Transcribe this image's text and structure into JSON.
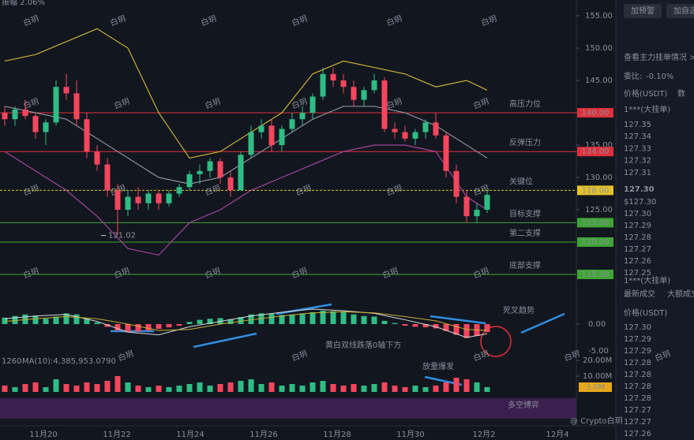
{
  "chart_data": {
    "type": "candlestick",
    "amplitude": "振幅 2.06%",
    "ylim": [
      155,
      115
    ],
    "yticks": [
      {
        "value": 155,
        "label": "155.00"
      },
      {
        "value": 150,
        "label": "150.00"
      },
      {
        "value": 145,
        "label": "145.00"
      },
      {
        "value": 140,
        "label": "140.00"
      },
      {
        "value": 135,
        "label": "135.00"
      },
      {
        "value": 130,
        "label": "130.00"
      },
      {
        "value": 125,
        "label": "125.00"
      }
    ],
    "dates": [
      "11月20",
      "11月22",
      "11月24",
      "11月26",
      "11月28",
      "11月30",
      "12月2",
      "12月4"
    ],
    "up_color": "#2ebd85",
    "down_color": "#f6465d",
    "candles": [
      [
        140,
        141,
        138,
        139
      ],
      [
        139,
        141,
        138,
        140.5
      ],
      [
        140.5,
        142,
        139,
        139.5
      ],
      [
        139.5,
        140,
        136,
        137
      ],
      [
        137,
        139,
        135,
        138.5
      ],
      [
        138.5,
        145,
        138,
        144
      ],
      [
        144,
        146,
        142,
        143
      ],
      [
        143,
        145,
        138,
        139
      ],
      [
        139,
        140,
        133,
        134
      ],
      [
        134,
        135,
        131,
        132
      ],
      [
        132,
        133,
        127,
        128
      ],
      [
        128,
        129,
        121.02,
        125
      ],
      [
        125,
        128,
        124,
        127
      ],
      [
        127,
        128.5,
        125,
        126
      ],
      [
        126,
        128,
        125,
        127.5
      ],
      [
        127.5,
        128,
        125,
        126
      ],
      [
        126,
        128,
        125.5,
        127.5
      ],
      [
        127.5,
        129,
        127,
        128.5
      ],
      [
        128.5,
        131,
        128,
        130.5
      ],
      [
        130.5,
        132,
        129,
        131
      ],
      [
        131,
        133,
        130,
        132.5
      ],
      [
        132.5,
        133,
        129,
        130
      ],
      [
        130,
        131,
        127,
        128
      ],
      [
        128,
        134,
        128,
        133.5
      ],
      [
        133.5,
        138,
        133,
        137
      ],
      [
        137,
        139,
        136,
        138
      ],
      [
        138,
        139,
        134,
        135
      ],
      [
        135,
        138,
        134,
        137.5
      ],
      [
        137.5,
        140,
        137,
        139
      ],
      [
        139,
        141,
        138,
        140
      ],
      [
        140,
        143,
        139,
        142.5
      ],
      [
        142.5,
        147,
        142,
        146
      ],
      [
        146,
        147,
        144,
        145
      ],
      [
        145,
        146,
        143,
        144
      ],
      [
        144,
        145,
        141,
        142
      ],
      [
        142,
        144,
        141,
        143.5
      ],
      [
        143.5,
        146,
        143,
        145
      ],
      [
        145,
        145.5,
        137,
        137.5
      ],
      [
        137.5,
        138.5,
        136,
        137
      ],
      [
        137,
        138,
        135.5,
        136
      ],
      [
        136,
        137.5,
        135,
        137
      ],
      [
        137,
        139,
        136,
        138.5
      ],
      [
        138.5,
        140,
        136,
        136.5
      ],
      [
        136.5,
        137,
        130,
        131
      ],
      [
        131,
        132,
        126,
        127
      ],
      [
        127,
        128,
        123,
        124
      ],
      [
        124,
        126,
        123,
        125
      ],
      [
        125,
        128,
        124.5,
        127.3
      ]
    ],
    "band_x": [
      0,
      3,
      6,
      9,
      12,
      15,
      18,
      21,
      24,
      27,
      30,
      33,
      36,
      39,
      42,
      45,
      47
    ],
    "bands": [
      {
        "color": "#c9b037",
        "values": [
          148,
          149,
          151,
          153,
          150,
          140,
          133,
          134,
          137,
          140,
          146,
          148,
          147,
          146,
          144,
          145,
          143.5
        ]
      },
      {
        "color": "#8a8f9c",
        "values": [
          141,
          140,
          139,
          136,
          133,
          130,
          129,
          130,
          133,
          136,
          139,
          141,
          141,
          140,
          138,
          135,
          133
        ]
      },
      {
        "color": "#a4469e",
        "values": [
          134,
          131,
          128,
          124,
          119,
          118,
          123,
          125,
          128,
          130,
          132,
          134,
          135,
          135,
          134,
          127,
          125
        ]
      }
    ],
    "low_mark": {
      "value": 121.02,
      "label": "121.02"
    },
    "levels": [
      {
        "name": "高压力位",
        "value": 140,
        "label": "140.00",
        "color": "#e0303a"
      },
      {
        "name": "反弹压力",
        "value": 134,
        "label": "134.00",
        "color": "#e0303a"
      },
      {
        "name": "关键位",
        "value": 128,
        "label": "128.00",
        "color": "#e6c229"
      },
      {
        "name": "目标支撑",
        "value": 123,
        "label": "123.00",
        "color": "#3fa535"
      },
      {
        "name": "第二支撑",
        "value": 120,
        "label": "120.00",
        "color": "#3fa535"
      },
      {
        "name": "底部支撑",
        "value": 115,
        "label": "115.00",
        "color": "#3fa535"
      }
    ],
    "macd": {
      "yticks": [
        {
          "value": 0,
          "label": "0.00"
        },
        {
          "value": -5,
          "label": "-5.00"
        }
      ],
      "hist": [
        1.2,
        1.5,
        1.8,
        1.6,
        1.0,
        1.4,
        2.0,
        1.8,
        1.0,
        0.3,
        -0.5,
        -1.2,
        -1.5,
        -1.4,
        -1.2,
        -0.9,
        -0.6,
        -0.3,
        0.4,
        0.8,
        1.0,
        1.1,
        0.9,
        1.3,
        1.8,
        2.0,
        1.9,
        1.7,
        1.8,
        2.0,
        2.2,
        2.5,
        2.4,
        2.2,
        1.8,
        1.5,
        1.4,
        0.6,
        0.2,
        -0.3,
        -0.5,
        -0.6,
        -0.8,
        -1.3,
        -2.0,
        -2.6,
        -2.2,
        -1.5
      ],
      "dif": [
        1,
        1.5,
        1.8,
        0.5,
        -1.5,
        -2,
        -0.5,
        0.5,
        1.5,
        2.2,
        2.8,
        2.5,
        2.0,
        0.8,
        -0.5,
        -2.5,
        -1.8
      ],
      "dea": [
        0.5,
        1,
        1.4,
        1,
        0,
        -1.2,
        -1,
        0,
        0.8,
        1.5,
        2.1,
        2.3,
        2.1,
        1.4,
        0.6,
        -1,
        -1.2
      ]
    },
    "volume": {
      "prefix": "1260",
      "ma": "MA(10):4,385,953.0790",
      "yticks": [
        {
          "value": 20,
          "label": "20.00M"
        },
        {
          "value": 10,
          "label": "10.00M"
        }
      ],
      "current": {
        "value": 3,
        "label": "3.0M"
      },
      "values": [
        4,
        3,
        5,
        6,
        3,
        8,
        5,
        4,
        6,
        5,
        7,
        10,
        6,
        4,
        3,
        4,
        3,
        4,
        5,
        6,
        4,
        5,
        6,
        7,
        8,
        5,
        6,
        4,
        5,
        4,
        6,
        7,
        5,
        4,
        5,
        4,
        5,
        6,
        4,
        3,
        4,
        3,
        4,
        6,
        9,
        8,
        6,
        3
      ]
    },
    "annotations": {
      "death_cross": "死叉趋势",
      "below_zero": "黄白双线跌落0轴下方",
      "volume_burst": "放量爆发",
      "tug_of_war": "多空博弈"
    }
  },
  "side_panel": {
    "buttons": [
      "加预警",
      "加自选"
    ],
    "depth_link": "查看主力挂单情况 >",
    "ratio_label": "委比:",
    "ratio": "-0.10%",
    "col_price": "价格(USDT)",
    "col_qty": "数",
    "ask_big": "1***(大挂单)",
    "asks": [
      "127.35",
      "127.34",
      "127.33",
      "127.32",
      "127.31"
    ],
    "last": "127.30",
    "last_usd": "$127.30",
    "bids": [
      "127.30",
      "127.29",
      "127.28",
      "127.27",
      "127.26",
      "127.25"
    ],
    "bid_big": "1***(大挂单)",
    "tabs": [
      "最新成交",
      "大额成交"
    ],
    "trades_header": "价格(USDT)",
    "trades": [
      {
        "price": "127.30",
        "side": "buy"
      },
      {
        "price": "127.29",
        "side": "sell"
      },
      {
        "price": "127.29",
        "side": "buy"
      },
      {
        "price": "127.28",
        "side": "buy"
      },
      {
        "price": "127.28",
        "side": "sell"
      },
      {
        "price": "127.28",
        "side": "buy"
      },
      {
        "price": "127.28",
        "side": "sell"
      },
      {
        "price": "127.27",
        "side": "sell"
      },
      {
        "price": "127.27",
        "side": "buy"
      },
      {
        "price": "127.26",
        "side": "buy"
      }
    ]
  },
  "watermark": "白玥",
  "brand": "@ Crypto白玥"
}
